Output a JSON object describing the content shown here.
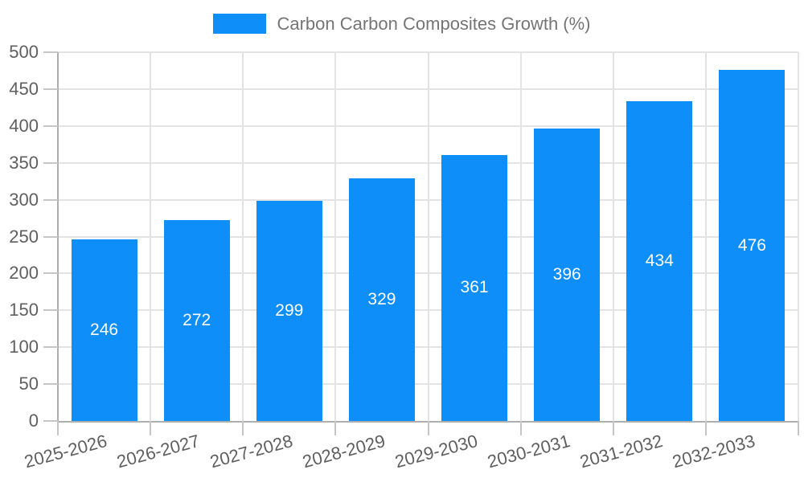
{
  "legend": {
    "label": "Carbon Carbon Composites Growth (%)",
    "swatch_color": "#0d8ef9"
  },
  "chart_data": {
    "type": "bar",
    "title": "Carbon Carbon Composites Growth (%)",
    "categories": [
      "2025-2026",
      "2026-2027",
      "2027-2028",
      "2028-2029",
      "2029-2030",
      "2030-2031",
      "2031-2032",
      "2032-2033"
    ],
    "values": [
      246,
      272,
      299,
      329,
      361,
      396,
      434,
      476
    ],
    "value_labels": [
      246,
      272,
      299,
      329,
      361,
      396,
      434,
      476
    ],
    "xlabel": "",
    "ylabel": "",
    "ylim": [
      0,
      500
    ],
    "yticks": [
      0,
      50,
      100,
      150,
      200,
      250,
      300,
      350,
      400,
      450,
      500
    ],
    "grid": "on",
    "legend_position": "top-center",
    "value_label_position": "inside-center"
  },
  "colors": {
    "bar": "#0d8ef9",
    "grid": "#e3e3e3",
    "axis": "#aeaeae",
    "tick": "#c6c6c6",
    "tick_label": "#5f5f5f",
    "legend_text": "#757575",
    "value_label": "#ffffff",
    "background": "#ffffff"
  }
}
